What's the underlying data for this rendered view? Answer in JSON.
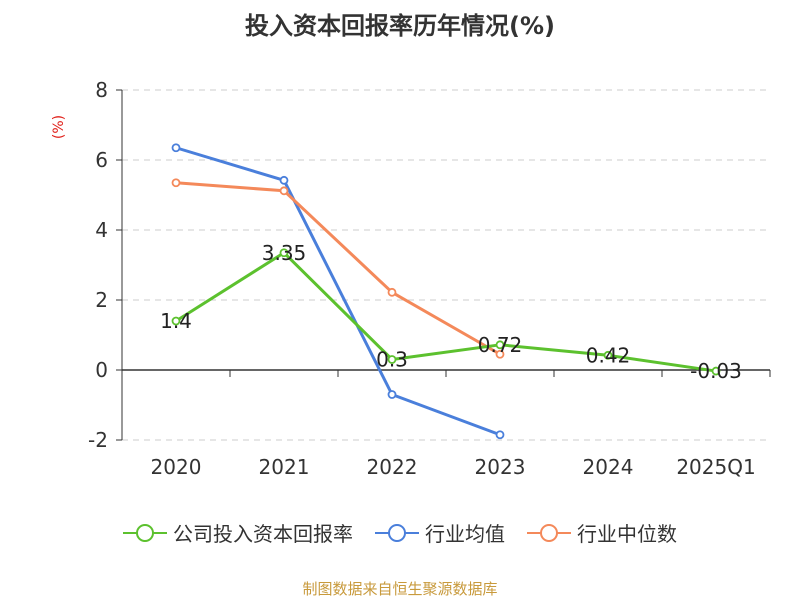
{
  "title": "投入资本回报率历年情况(%)",
  "source": "制图数据来自恒生聚源数据库",
  "chart_data": {
    "type": "line",
    "title": "投入资本回报率历年情况(%)",
    "ylabel": "(%)",
    "xlabel": "",
    "categories": [
      "2020",
      "2021",
      "2022",
      "2023",
      "2024",
      "2025Q1"
    ],
    "ylim": [
      -2,
      8
    ],
    "yticks": [
      -2,
      0,
      2,
      4,
      6,
      8
    ],
    "grid": true,
    "legend_position": "bottom",
    "series": [
      {
        "name": "公司投入资本回报率",
        "color": "#5cc12e",
        "labels": true,
        "values": [
          1.4,
          3.35,
          0.3,
          0.72,
          0.42,
          -0.03
        ]
      },
      {
        "name": "行业均值",
        "color": "#4a7fdb",
        "labels": false,
        "values": [
          6.35,
          5.42,
          -0.7,
          -1.85,
          null,
          null
        ]
      },
      {
        "name": "行业中位数",
        "color": "#f4895a",
        "labels": false,
        "values": [
          5.35,
          5.12,
          2.22,
          0.45,
          null,
          null
        ]
      }
    ]
  }
}
